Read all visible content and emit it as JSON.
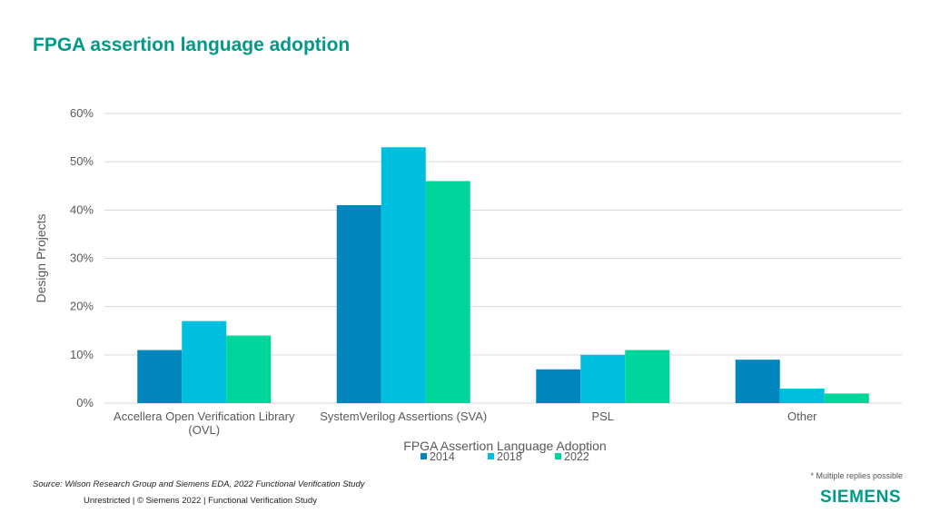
{
  "title": "FPGA assertion language adoption",
  "chart_data": {
    "type": "bar",
    "title": "",
    "xlabel": "FPGA Assertion Language Adoption",
    "ylabel": "Design Projects",
    "ylim": [
      0,
      60
    ],
    "yticks": [
      "0%",
      "10%",
      "20%",
      "30%",
      "40%",
      "50%",
      "60%"
    ],
    "categories": [
      [
        "Accellera Open Verification Library",
        "(OVL)"
      ],
      [
        "SystemVerilog Assertions (SVA)"
      ],
      [
        "PSL"
      ],
      [
        "Other"
      ]
    ],
    "series": [
      {
        "name": "2014",
        "color": "#0085bd",
        "values": [
          11,
          41,
          7,
          9
        ]
      },
      {
        "name": "2018",
        "color": "#00bedd",
        "values": [
          17,
          53,
          10,
          3
        ]
      },
      {
        "name": "2022",
        "color": "#00d59c",
        "values": [
          14,
          46,
          11,
          2
        ]
      }
    ],
    "grid": true,
    "legend": "bottom"
  },
  "note": "* Multiple replies possible",
  "source": "Source:  Wilson Research Group and Siemens EDA, 2022 Functional Verification Study",
  "footer": "Unrestricted | © Siemens 2022 |  Functional Verification Study",
  "logo": "SIEMENS"
}
